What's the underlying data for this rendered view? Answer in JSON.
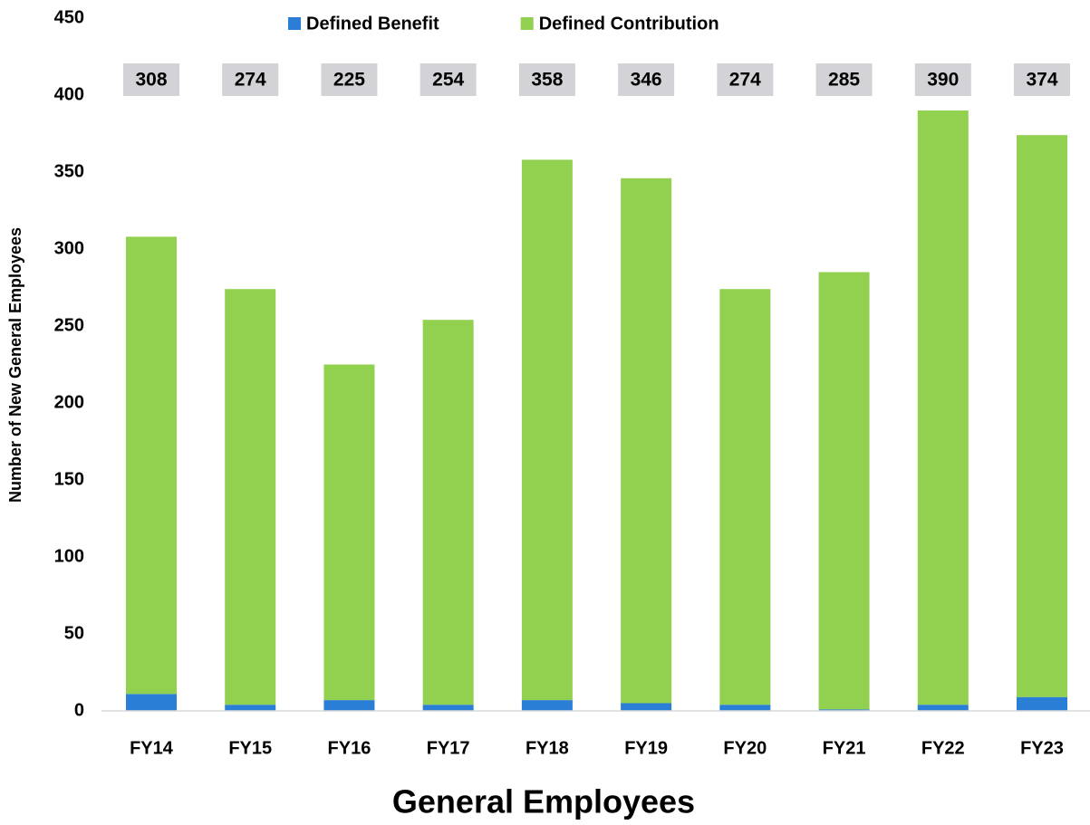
{
  "chart_data": {
    "type": "stacked_bar",
    "title": "General Employees",
    "y_label": "Number of New General Employees",
    "categories": [
      "FY14",
      "FY15",
      "FY16",
      "FY17",
      "FY18",
      "FY19",
      "FY20",
      "FY21",
      "FY22",
      "FY23"
    ],
    "series": [
      {
        "name": "Defined Benefit",
        "color": "#2a7ed6",
        "values": [
          11,
          4,
          7,
          4,
          7,
          5,
          4,
          1,
          4,
          9
        ]
      },
      {
        "name": "Defined Contribution",
        "color": "#92d050",
        "values": [
          297,
          270,
          218,
          250,
          351,
          341,
          270,
          284,
          386,
          365
        ]
      }
    ],
    "totals": [
      308,
      274,
      225,
      254,
      358,
      346,
      274,
      285,
      390,
      374
    ],
    "ylim": [
      0,
      450
    ],
    "yticks": [
      0,
      50,
      100,
      150,
      200,
      250,
      300,
      350,
      400,
      450
    ],
    "grid": false,
    "legend": "top"
  }
}
